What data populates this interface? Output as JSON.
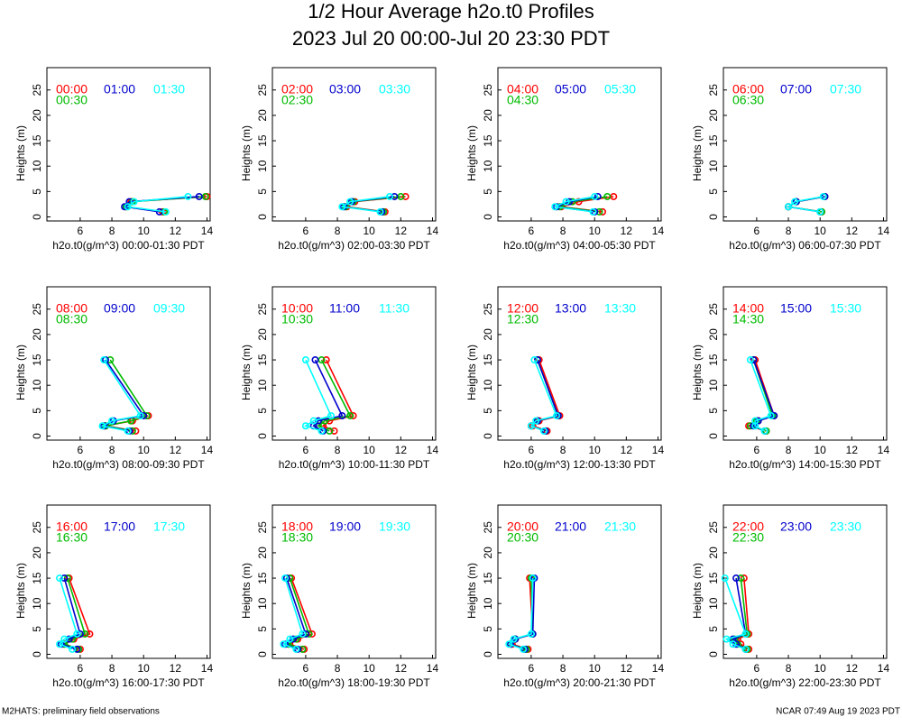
{
  "header": {
    "title": "1/2 Hour Average h2o.t0 Profiles",
    "subtitle": "2023 Jul 20 00:00-Jul 20 23:30 PDT"
  },
  "footer": {
    "left": "M2HATS: preliminary field observations",
    "right": "NCAR 07:49 Aug 19 2023 PDT"
  },
  "chart_data": [
    {
      "type": "line",
      "xlabel": "h2o.t0(g/m^3) 00:00-01:30 PDT",
      "ylabel": "Heights (m)",
      "xlim": [
        3.9,
        14.2
      ],
      "ylim": [
        -0.8,
        29.4
      ],
      "xticks": [
        6,
        8,
        10,
        12,
        14
      ],
      "yticks": [
        0,
        5,
        10,
        15,
        20,
        25
      ],
      "heights": [
        1,
        2,
        3,
        4,
        15
      ],
      "series": [
        {
          "name": "00:00",
          "color": "#ff0000",
          "values": [
            11.2,
            8.9,
            9.2,
            14.0,
            null
          ]
        },
        {
          "name": "00:30",
          "color": "#00bb00",
          "values": [
            11.3,
            8.9,
            9.3,
            13.9,
            null
          ]
        },
        {
          "name": "01:00",
          "color": "#0000cc",
          "values": [
            11.0,
            8.8,
            9.1,
            13.5,
            null
          ]
        },
        {
          "name": "01:30",
          "color": "#00ffff",
          "values": [
            11.4,
            9.0,
            9.4,
            12.8,
            null
          ]
        }
      ]
    },
    {
      "type": "line",
      "xlabel": "h2o.t0(g/m^3) 02:00-03:30 PDT",
      "ylabel": "Heights (m)",
      "xlim": [
        3.9,
        14.2
      ],
      "ylim": [
        -0.8,
        29.4
      ],
      "xticks": [
        6,
        8,
        10,
        12,
        14
      ],
      "yticks": [
        0,
        5,
        10,
        15,
        20,
        25
      ],
      "heights": [
        1,
        2,
        3,
        4,
        15
      ],
      "series": [
        {
          "name": "02:00",
          "color": "#ff0000",
          "values": [
            11.0,
            8.6,
            9.1,
            12.3,
            null
          ]
        },
        {
          "name": "02:30",
          "color": "#00bb00",
          "values": [
            10.9,
            8.5,
            9.0,
            12.0,
            null
          ]
        },
        {
          "name": "03:00",
          "color": "#0000cc",
          "values": [
            10.8,
            8.4,
            8.9,
            11.6,
            null
          ]
        },
        {
          "name": "03:30",
          "color": "#00ffff",
          "values": [
            10.7,
            8.3,
            8.8,
            11.3,
            null
          ]
        }
      ]
    },
    {
      "type": "line",
      "xlabel": "h2o.t0(g/m^3) 04:00-05:30 PDT",
      "ylabel": "Heights (m)",
      "xlim": [
        3.9,
        14.2
      ],
      "ylim": [
        -0.8,
        29.4
      ],
      "xticks": [
        6,
        8,
        10,
        12,
        14
      ],
      "yticks": [
        0,
        5,
        10,
        15,
        20,
        25
      ],
      "heights": [
        1,
        2,
        3,
        4,
        15
      ],
      "series": [
        {
          "name": "04:00",
          "color": "#ff0000",
          "values": [
            10.5,
            7.9,
            9.0,
            11.2,
            null
          ]
        },
        {
          "name": "04:30",
          "color": "#00bb00",
          "values": [
            10.3,
            7.8,
            8.6,
            10.8,
            null
          ]
        },
        {
          "name": "05:00",
          "color": "#0000cc",
          "values": [
            10.0,
            7.6,
            8.4,
            10.2,
            null
          ]
        },
        {
          "name": "05:30",
          "color": "#00ffff",
          "values": [
            9.9,
            7.5,
            8.2,
            10.0,
            null
          ]
        }
      ]
    },
    {
      "type": "line",
      "xlabel": "h2o.t0(g/m^3) 06:00-07:30 PDT",
      "ylabel": "Heights (m)",
      "xlim": [
        3.9,
        14.2
      ],
      "ylim": [
        -0.8,
        29.4
      ],
      "xticks": [
        6,
        8,
        10,
        12,
        14
      ],
      "yticks": [
        0,
        5,
        10,
        15,
        20,
        25
      ],
      "heights": [
        1,
        2,
        3,
        4,
        15
      ],
      "series": [
        {
          "name": "06:00",
          "color": "#ff0000",
          "values": [
            10.1,
            8.0,
            8.5,
            10.3,
            null
          ]
        },
        {
          "name": "06:30",
          "color": "#00bb00",
          "values": [
            10.1,
            8.0,
            8.5,
            10.3,
            null
          ]
        },
        {
          "name": "07:00",
          "color": "#0000cc",
          "values": [
            10.0,
            8.0,
            8.5,
            10.3,
            null
          ]
        },
        {
          "name": "07:30",
          "color": "#00ffff",
          "values": [
            10.0,
            8.0,
            8.4,
            10.2,
            null
          ]
        }
      ]
    },
    {
      "type": "line",
      "xlabel": "h2o.t0(g/m^3) 08:00-09:30 PDT",
      "ylabel": "Heights (m)",
      "xlim": [
        3.9,
        14.2
      ],
      "ylim": [
        -0.8,
        29.4
      ],
      "xticks": [
        6,
        8,
        10,
        12,
        14
      ],
      "yticks": [
        0,
        5,
        10,
        15,
        20,
        25
      ],
      "heights": [
        1,
        2,
        3,
        4,
        15
      ],
      "series": [
        {
          "name": "08:00",
          "color": "#ff0000",
          "values": [
            9.5,
            7.6,
            9.3,
            10.3,
            null
          ]
        },
        {
          "name": "08:30",
          "color": "#00bb00",
          "values": [
            9.3,
            7.6,
            9.2,
            10.2,
            7.9
          ]
        },
        {
          "name": "09:00",
          "color": "#0000cc",
          "values": [
            9.1,
            7.5,
            8.1,
            10.0,
            7.6
          ]
        },
        {
          "name": "09:30",
          "color": "#00ffff",
          "values": [
            9.0,
            7.4,
            8.0,
            9.8,
            7.5
          ]
        }
      ]
    },
    {
      "type": "line",
      "xlabel": "h2o.t0(g/m^3) 10:00-11:30 PDT",
      "ylabel": "Heights (m)",
      "xlim": [
        3.9,
        14.2
      ],
      "ylim": [
        -0.8,
        29.4
      ],
      "xticks": [
        6,
        8,
        10,
        12,
        14
      ],
      "yticks": [
        0,
        5,
        10,
        15,
        20,
        25
      ],
      "heights": [
        1,
        2,
        3,
        4,
        15
      ],
      "series": [
        {
          "name": "10:00",
          "color": "#ff0000",
          "values": [
            7.8,
            7.1,
            7.5,
            9.0,
            7.3
          ]
        },
        {
          "name": "10:30",
          "color": "#00bb00",
          "values": [
            7.5,
            6.8,
            7.2,
            8.8,
            7.0
          ]
        },
        {
          "name": "11:00",
          "color": "#0000cc",
          "values": [
            7.1,
            6.5,
            6.8,
            8.3,
            6.6
          ]
        },
        {
          "name": "11:30",
          "color": "#00ffff",
          "values": [
            7.0,
            6.0,
            6.5,
            7.6,
            6.0
          ]
        }
      ]
    },
    {
      "type": "line",
      "xlabel": "h2o.t0(g/m^3) 12:00-13:30 PDT",
      "ylabel": "Heights (m)",
      "xlim": [
        3.9,
        14.2
      ],
      "ylim": [
        -0.8,
        29.4
      ],
      "xticks": [
        6,
        8,
        10,
        12,
        14
      ],
      "yticks": [
        0,
        5,
        10,
        15,
        20,
        25
      ],
      "heights": [
        1,
        2,
        3,
        4,
        15
      ],
      "series": [
        {
          "name": "12:00",
          "color": "#ff0000",
          "values": [
            7.0,
            6.1,
            6.5,
            7.8,
            6.5
          ]
        },
        {
          "name": "12:30",
          "color": "#00bb00",
          "values": [
            6.9,
            6.0,
            6.4,
            7.7,
            6.4
          ]
        },
        {
          "name": "13:00",
          "color": "#0000cc",
          "values": [
            6.9,
            6.0,
            6.4,
            7.7,
            6.4
          ]
        },
        {
          "name": "13:30",
          "color": "#00ffff",
          "values": [
            6.8,
            6.0,
            6.3,
            7.6,
            6.2
          ]
        }
      ]
    },
    {
      "type": "line",
      "xlabel": "h2o.t0(g/m^3) 14:00-15:30 PDT",
      "ylabel": "Heights (m)",
      "xlim": [
        3.9,
        14.2
      ],
      "ylim": [
        -0.8,
        29.4
      ],
      "xticks": [
        6,
        8,
        10,
        12,
        14
      ],
      "yticks": [
        0,
        5,
        10,
        15,
        20,
        25
      ],
      "heights": [
        1,
        2,
        3,
        4,
        15
      ],
      "series": [
        {
          "name": "14:00",
          "color": "#ff0000",
          "values": [
            6.6,
            5.5,
            6.1,
            7.1,
            5.9
          ]
        },
        {
          "name": "14:30",
          "color": "#00bb00",
          "values": [
            6.6,
            5.6,
            6.0,
            7.0,
            5.8
          ]
        },
        {
          "name": "15:00",
          "color": "#0000cc",
          "values": [
            6.5,
            5.8,
            6.1,
            7.1,
            5.8
          ]
        },
        {
          "name": "15:30",
          "color": "#00ffff",
          "values": [
            6.5,
            5.9,
            5.9,
            6.9,
            5.6
          ]
        }
      ]
    },
    {
      "type": "line",
      "xlabel": "h2o.t0(g/m^3) 16:00-17:30 PDT",
      "ylabel": "Heights (m)",
      "xlim": [
        3.9,
        14.2
      ],
      "ylim": [
        -0.8,
        29.4
      ],
      "xticks": [
        6,
        8,
        10,
        12,
        14
      ],
      "yticks": [
        0,
        5,
        10,
        15,
        20,
        25
      ],
      "heights": [
        1,
        2,
        3,
        4,
        15
      ],
      "series": [
        {
          "name": "16:00",
          "color": "#ff0000",
          "values": [
            6.0,
            5.0,
            5.6,
            6.6,
            5.3
          ]
        },
        {
          "name": "16:30",
          "color": "#00bb00",
          "values": [
            5.9,
            5.0,
            5.5,
            6.3,
            5.2
          ]
        },
        {
          "name": "17:00",
          "color": "#0000cc",
          "values": [
            5.8,
            4.8,
            5.3,
            6.0,
            5.0
          ]
        },
        {
          "name": "17:30",
          "color": "#00ffff",
          "values": [
            5.5,
            4.7,
            5.0,
            5.8,
            4.7
          ]
        }
      ]
    },
    {
      "type": "line",
      "xlabel": "h2o.t0(g/m^3) 18:00-19:30 PDT",
      "ylabel": "Heights (m)",
      "xlim": [
        3.9,
        14.2
      ],
      "ylim": [
        -0.8,
        29.4
      ],
      "xticks": [
        6,
        8,
        10,
        12,
        14
      ],
      "yticks": [
        0,
        5,
        10,
        15,
        20,
        25
      ],
      "heights": [
        1,
        2,
        3,
        4,
        15
      ],
      "series": [
        {
          "name": "18:00",
          "color": "#ff0000",
          "values": [
            5.9,
            5.0,
            5.5,
            6.4,
            5.1
          ]
        },
        {
          "name": "18:30",
          "color": "#00bb00",
          "values": [
            5.8,
            4.9,
            5.4,
            6.2,
            5.0
          ]
        },
        {
          "name": "19:00",
          "color": "#0000cc",
          "values": [
            5.5,
            4.7,
            5.2,
            6.0,
            4.8
          ]
        },
        {
          "name": "19:30",
          "color": "#00ffff",
          "values": [
            5.4,
            4.6,
            5.0,
            5.8,
            4.7
          ]
        }
      ]
    },
    {
      "type": "line",
      "xlabel": "h2o.t0(g/m^3) 20:00-21:30 PDT",
      "ylabel": "Heights (m)",
      "xlim": [
        3.9,
        14.2
      ],
      "ylim": [
        -0.8,
        29.4
      ],
      "xticks": [
        6,
        8,
        10,
        12,
        14
      ],
      "yticks": [
        0,
        5,
        10,
        15,
        20,
        25
      ],
      "heights": [
        1,
        2,
        3,
        4,
        15
      ],
      "series": [
        {
          "name": "20:00",
          "color": "#ff0000",
          "values": [
            5.8,
            4.8,
            5.0,
            6.1,
            5.9
          ]
        },
        {
          "name": "20:30",
          "color": "#00bb00",
          "values": [
            5.7,
            4.7,
            5.0,
            6.1,
            6.0
          ]
        },
        {
          "name": "21:00",
          "color": "#0000cc",
          "values": [
            5.6,
            4.7,
            5.0,
            6.1,
            6.2
          ]
        },
        {
          "name": "21:30",
          "color": "#00ffff",
          "values": [
            5.5,
            4.6,
            4.9,
            6.0,
            6.1
          ]
        }
      ]
    },
    {
      "type": "line",
      "xlabel": "h2o.t0(g/m^3) 22:00-23:30 PDT",
      "ylabel": "Heights (m)",
      "xlim": [
        3.9,
        14.2
      ],
      "ylim": [
        -0.8,
        29.4
      ],
      "xticks": [
        6,
        8,
        10,
        12,
        14
      ],
      "yticks": [
        0,
        5,
        10,
        15,
        20,
        25
      ],
      "heights": [
        1,
        2,
        3,
        4,
        15
      ],
      "series": [
        {
          "name": "22:00",
          "color": "#ff0000",
          "values": [
            5.5,
            5.0,
            4.8,
            5.5,
            5.2
          ]
        },
        {
          "name": "22:30",
          "color": "#00bb00",
          "values": [
            5.4,
            4.8,
            4.6,
            5.4,
            5.0
          ]
        },
        {
          "name": "23:00",
          "color": "#0000cc",
          "values": [
            5.3,
            4.7,
            4.5,
            5.3,
            4.7
          ]
        },
        {
          "name": "23:30",
          "color": "#00ffff",
          "values": [
            5.3,
            4.5,
            4.1,
            5.3,
            4.0
          ]
        }
      ]
    }
  ]
}
